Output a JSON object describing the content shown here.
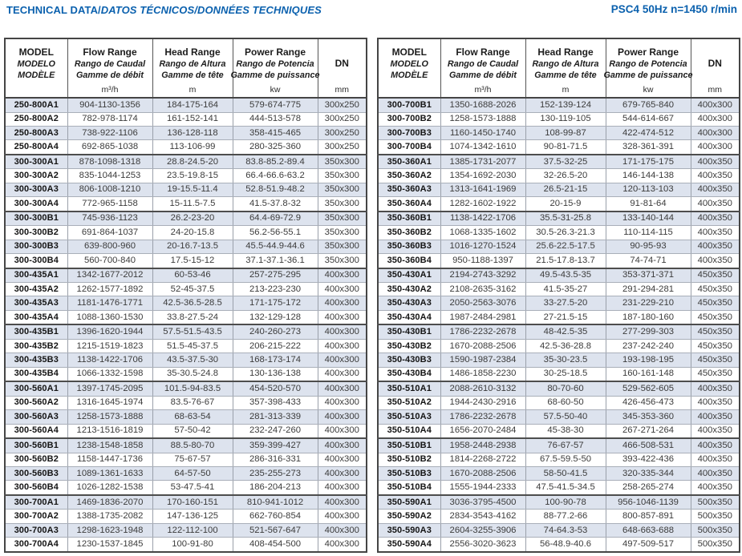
{
  "page": {
    "title_main": "TECHNICAL DATA/",
    "title_intl": "DATOS TÉCNICOS/DONNÉES TECHNIQUES",
    "spec": "PSC4 50Hz n=1450 r/min",
    "accent_color": "#0b61ae",
    "stripe_color": "#dde3ee"
  },
  "columns": {
    "model": {
      "l1": "MODEL",
      "l2": "MODELO",
      "l3": "MODÈLE",
      "unit": ""
    },
    "flow": {
      "l1": "Flow Range",
      "l2": "Rango de Caudal",
      "l3": "Gamme de débit",
      "unit": "m³/h"
    },
    "head": {
      "l1": "Head Range",
      "l2": "Rango de Altura",
      "l3": "Gamme de tête",
      "unit": "m"
    },
    "power": {
      "l1": "Power Range",
      "l2": "Rango de Potencia",
      "l3": "Gamme de puissance",
      "unit": "kw"
    },
    "dn": {
      "l1": "DN",
      "l2": "",
      "l3": "",
      "unit": "mm"
    }
  },
  "tables": [
    {
      "rows": [
        [
          "250-800A1",
          "904-1130-1356",
          "184-175-164",
          "579-674-775",
          "300x250"
        ],
        [
          "250-800A2",
          "782-978-1174",
          "161-152-141",
          "444-513-578",
          "300x250"
        ],
        [
          "250-800A3",
          "738-922-1106",
          "136-128-118",
          "358-415-465",
          "300x250"
        ],
        [
          "250-800A4",
          "692-865-1038",
          "113-106-99",
          "280-325-360",
          "300x250"
        ],
        [
          "300-300A1",
          "878-1098-1318",
          "28.8-24.5-20",
          "83.8-85.2-89.4",
          "350x300"
        ],
        [
          "300-300A2",
          "835-1044-1253",
          "23.5-19.8-15",
          "66.4-66.6-63.2",
          "350x300"
        ],
        [
          "300-300A3",
          "806-1008-1210",
          "19-15.5-11.4",
          "52.8-51.9-48.2",
          "350x300"
        ],
        [
          "300-300A4",
          "772-965-1158",
          "15-11.5-7.5",
          "41.5-37.8-32",
          "350x300"
        ],
        [
          "300-300B1",
          "745-936-1123",
          "26.2-23-20",
          "64.4-69-72.9",
          "350x300"
        ],
        [
          "300-300B2",
          "691-864-1037",
          "24-20-15.8",
          "56.2-56-55.1",
          "350x300"
        ],
        [
          "300-300B3",
          "639-800-960",
          "20-16.7-13.5",
          "45.5-44.9-44.6",
          "350x300"
        ],
        [
          "300-300B4",
          "560-700-840",
          "17.5-15-12",
          "37.1-37.1-36.1",
          "350x300"
        ],
        [
          "300-435A1",
          "1342-1677-2012",
          "60-53-46",
          "257-275-295",
          "400x300"
        ],
        [
          "300-435A2",
          "1262-1577-1892",
          "52-45-37.5",
          "213-223-230",
          "400x300"
        ],
        [
          "300-435A3",
          "1181-1476-1771",
          "42.5-36.5-28.5",
          "171-175-172",
          "400x300"
        ],
        [
          "300-435A4",
          "1088-1360-1530",
          "33.8-27.5-24",
          "132-129-128",
          "400x300"
        ],
        [
          "300-435B1",
          "1396-1620-1944",
          "57.5-51.5-43.5",
          "240-260-273",
          "400x300"
        ],
        [
          "300-435B2",
          "1215-1519-1823",
          "51.5-45-37.5",
          "206-215-222",
          "400x300"
        ],
        [
          "300-435B3",
          "1138-1422-1706",
          "43.5-37.5-30",
          "168-173-174",
          "400x300"
        ],
        [
          "300-435B4",
          "1066-1332-1598",
          "35-30.5-24.8",
          "130-136-138",
          "400x300"
        ],
        [
          "300-560A1",
          "1397-1745-2095",
          "101.5-94-83.5",
          "454-520-570",
          "400x300"
        ],
        [
          "300-560A2",
          "1316-1645-1974",
          "83.5-76-67",
          "357-398-433",
          "400x300"
        ],
        [
          "300-560A3",
          "1258-1573-1888",
          "68-63-54",
          "281-313-339",
          "400x300"
        ],
        [
          "300-560A4",
          "1213-1516-1819",
          "57-50-42",
          "232-247-260",
          "400x300"
        ],
        [
          "300-560B1",
          "1238-1548-1858",
          "88.5-80-70",
          "359-399-427",
          "400x300"
        ],
        [
          "300-560B2",
          "1158-1447-1736",
          "75-67-57",
          "286-316-331",
          "400x300"
        ],
        [
          "300-560B3",
          "1089-1361-1633",
          "64-57-50",
          "235-255-273",
          "400x300"
        ],
        [
          "300-560B4",
          "1026-1282-1538",
          "53-47.5-41",
          "186-204-213",
          "400x300"
        ],
        [
          "300-700A1",
          "1469-1836-2070",
          "170-160-151",
          "810-941-1012",
          "400x300"
        ],
        [
          "300-700A2",
          "1388-1735-2082",
          "147-136-125",
          "662-760-854",
          "400x300"
        ],
        [
          "300-700A3",
          "1298-1623-1948",
          "122-112-100",
          "521-567-647",
          "400x300"
        ],
        [
          "300-700A4",
          "1230-1537-1845",
          "100-91-80",
          "408-454-500",
          "400x300"
        ]
      ]
    },
    {
      "rows": [
        [
          "300-700B1",
          "1350-1688-2026",
          "152-139-124",
          "679-765-840",
          "400x300"
        ],
        [
          "300-700B2",
          "1258-1573-1888",
          "130-119-105",
          "544-614-667",
          "400x300"
        ],
        [
          "300-700B3",
          "1160-1450-1740",
          "108-99-87",
          "422-474-512",
          "400x300"
        ],
        [
          "300-700B4",
          "1074-1342-1610",
          "90-81-71.5",
          "328-361-391",
          "400x300"
        ],
        [
          "350-360A1",
          "1385-1731-2077",
          "37.5-32-25",
          "171-175-175",
          "400x350"
        ],
        [
          "350-360A2",
          "1354-1692-2030",
          "32-26.5-20",
          "146-144-138",
          "400x350"
        ],
        [
          "350-360A3",
          "1313-1641-1969",
          "26.5-21-15",
          "120-113-103",
          "400x350"
        ],
        [
          "350-360A4",
          "1282-1602-1922",
          "20-15-9",
          "91-81-64",
          "400x350"
        ],
        [
          "350-360B1",
          "1138-1422-1706",
          "35.5-31-25.8",
          "133-140-144",
          "400x350"
        ],
        [
          "350-360B2",
          "1068-1335-1602",
          "30.5-26.3-21.3",
          "110-114-115",
          "400x350"
        ],
        [
          "350-360B3",
          "1016-1270-1524",
          "25.6-22.5-17.5",
          "90-95-93",
          "400x350"
        ],
        [
          "350-360B4",
          "950-1188-1397",
          "21.5-17.8-13.7",
          "74-74-71",
          "400x350"
        ],
        [
          "350-430A1",
          "2194-2743-3292",
          "49.5-43.5-35",
          "353-371-371",
          "450x350"
        ],
        [
          "350-430A2",
          "2108-2635-3162",
          "41.5-35-27",
          "291-294-281",
          "450x350"
        ],
        [
          "350-430A3",
          "2050-2563-3076",
          "33-27.5-20",
          "231-229-210",
          "450x350"
        ],
        [
          "350-430A4",
          "1987-2484-2981",
          "27-21.5-15",
          "187-180-160",
          "450x350"
        ],
        [
          "350-430B1",
          "1786-2232-2678",
          "48-42.5-35",
          "277-299-303",
          "450x350"
        ],
        [
          "350-430B2",
          "1670-2088-2506",
          "42.5-36-28.8",
          "237-242-240",
          "450x350"
        ],
        [
          "350-430B3",
          "1590-1987-2384",
          "35-30-23.5",
          "193-198-195",
          "450x350"
        ],
        [
          "350-430B4",
          "1486-1858-2230",
          "30-25-18.5",
          "160-161-148",
          "450x350"
        ],
        [
          "350-510A1",
          "2088-2610-3132",
          "80-70-60",
          "529-562-605",
          "400x350"
        ],
        [
          "350-510A2",
          "1944-2430-2916",
          "68-60-50",
          "426-456-473",
          "400x350"
        ],
        [
          "350-510A3",
          "1786-2232-2678",
          "57.5-50-40",
          "345-353-360",
          "400x350"
        ],
        [
          "350-510A4",
          "1656-2070-2484",
          "45-38-30",
          "267-271-264",
          "400x350"
        ],
        [
          "350-510B1",
          "1958-2448-2938",
          "76-67-57",
          "466-508-531",
          "400x350"
        ],
        [
          "350-510B2",
          "1814-2268-2722",
          "67.5-59.5-50",
          "393-422-436",
          "400x350"
        ],
        [
          "350-510B3",
          "1670-2088-2506",
          "58-50-41.5",
          "320-335-344",
          "400x350"
        ],
        [
          "350-510B4",
          "1555-1944-2333",
          "47.5-41.5-34.5",
          "258-265-274",
          "400x350"
        ],
        [
          "350-590A1",
          "3036-3795-4500",
          "100-90-78",
          "956-1046-1139",
          "500x350"
        ],
        [
          "350-590A2",
          "2834-3543-4162",
          "88-77.2-66",
          "800-857-891",
          "500x350"
        ],
        [
          "350-590A3",
          "2604-3255-3906",
          "74-64.3-53",
          "648-663-688",
          "500x350"
        ],
        [
          "350-590A4",
          "2556-3020-3623",
          "56-48.9-40.6",
          "497-509-517",
          "500x350"
        ]
      ]
    }
  ]
}
